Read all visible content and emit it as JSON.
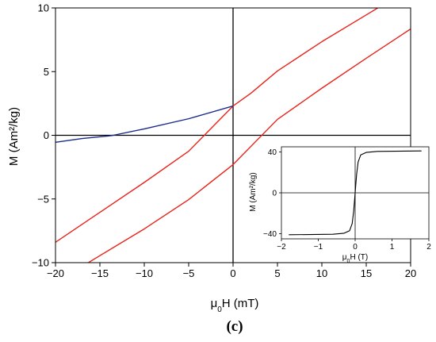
{
  "panel_label": "(c)",
  "chart_data": [
    {
      "type": "line",
      "title": "",
      "xlabel": "μ0H (mT)",
      "xlabel_parts": {
        "pre": "μ",
        "sub": "0",
        "post": "H (mT)"
      },
      "ylabel": "M (Am²/kg)",
      "xlim": [
        -20,
        20
      ],
      "ylim": [
        -10,
        10
      ],
      "xticks": [
        -20,
        -15,
        -10,
        -5,
        0,
        5,
        10,
        15,
        20
      ],
      "yticks": [
        -10,
        -5,
        0,
        5,
        10
      ],
      "zero_lines": true,
      "series": [
        {
          "color": "#e8231a",
          "x": [
            -20,
            -15,
            -10,
            -5,
            0,
            2,
            5,
            10,
            15,
            16.3
          ],
          "y": [
            -8.4,
            -6.05,
            -3.7,
            -1.25,
            2.3,
            3.3,
            5.05,
            7.35,
            9.45,
            10
          ]
        },
        {
          "color": "#e8231a",
          "x": [
            -16.3,
            -15,
            -10,
            -5,
            0,
            5,
            10,
            15,
            20
          ],
          "y": [
            -10,
            -9.45,
            -7.35,
            -5.05,
            -2.3,
            1.25,
            3.7,
            6.05,
            8.35
          ]
        },
        {
          "color": "#1a2a8c",
          "x": [
            -20,
            -17,
            -14,
            -13.5,
            -10,
            -5,
            0
          ],
          "y": [
            -0.55,
            -0.25,
            -0.05,
            0.0,
            0.5,
            1.3,
            2.3
          ]
        }
      ]
    },
    {
      "type": "line",
      "title": "",
      "inset": true,
      "xlabel": "μ0H (T)",
      "xlabel_parts": {
        "pre": "μ",
        "sub": "0",
        "post": "H (T)"
      },
      "ylabel": "M (Am²/kg)",
      "xlim": [
        -2,
        2
      ],
      "ylim": [
        -45,
        45
      ],
      "xticks": [
        -2,
        -1,
        0,
        1,
        2
      ],
      "yticks": [
        -40,
        0,
        40
      ],
      "zero_lines": true,
      "series": [
        {
          "color": "#000000",
          "x": [
            -1.8,
            -0.6,
            -0.3,
            -0.15,
            -0.08,
            -0.04,
            0,
            0.04,
            0.08,
            0.15,
            0.3,
            0.6,
            1.8
          ],
          "y": [
            -41,
            -40.5,
            -39.5,
            -37,
            -30,
            -18,
            0,
            18,
            30,
            37,
            39.5,
            40.5,
            41
          ]
        }
      ]
    }
  ]
}
